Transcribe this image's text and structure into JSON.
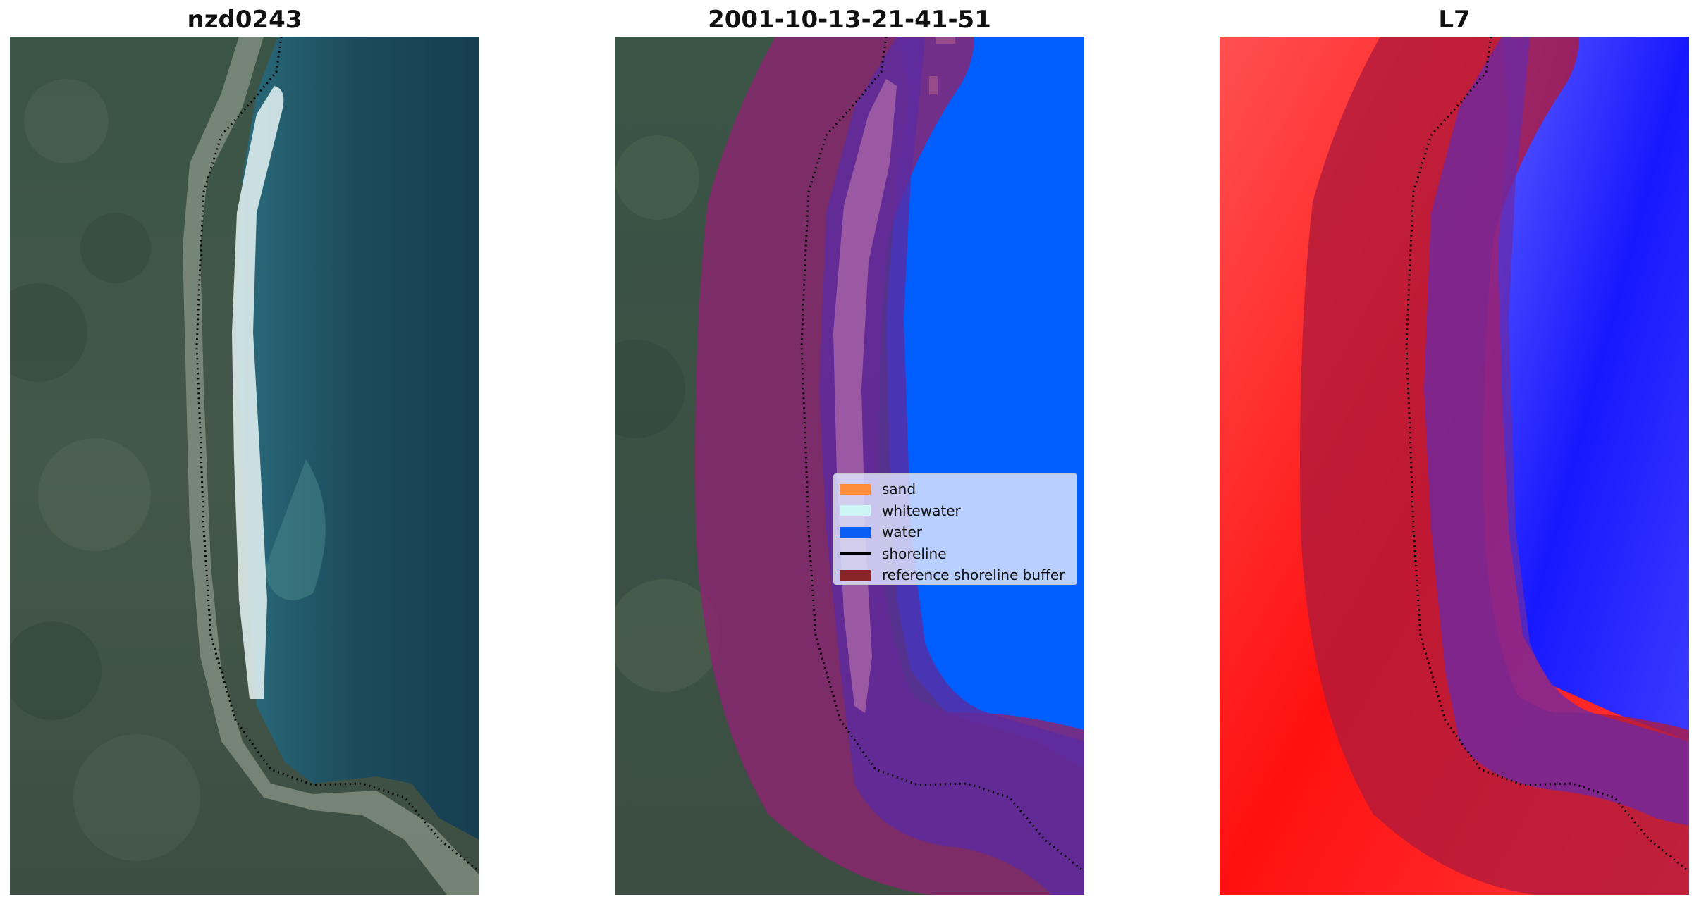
{
  "panels": [
    {
      "title": "nzd0243",
      "view": "true-colour satellite image"
    },
    {
      "title": "2001-10-13-21-41-51",
      "view": "classified image"
    },
    {
      "title": "L7",
      "view": "index image"
    }
  ],
  "legend": {
    "items": [
      {
        "label": "sand",
        "color": "#ff8c3a",
        "kind": "patch"
      },
      {
        "label": "whitewater",
        "color": "#ccf6f6",
        "kind": "patch"
      },
      {
        "label": "water",
        "color": "#0a5ef5",
        "kind": "patch"
      },
      {
        "label": "shoreline",
        "color": "#000000",
        "kind": "line"
      },
      {
        "label": "reference shoreline buffer",
        "color": "#8b2525",
        "kind": "patch"
      }
    ]
  },
  "colors": {
    "land": "#3f5546",
    "sea": "#1c4858",
    "water_class": "#005eff",
    "buffer": "#8b2470",
    "buffer_over_water": "#5b2aa0",
    "index_land": "#ff1a1a",
    "index_water": "#1a1aff"
  }
}
